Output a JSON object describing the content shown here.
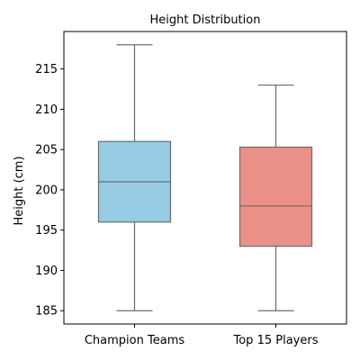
{
  "chart_data": {
    "type": "box",
    "title": "Height Distribution",
    "xlabel": "",
    "ylabel": "Height (cm)",
    "ylim": [
      183.35,
      219.65
    ],
    "yticks": [
      185,
      190,
      195,
      200,
      205,
      210,
      215
    ],
    "grid": false,
    "categories": [
      "Champion Teams",
      "Top 15 Players"
    ],
    "boxes": [
      {
        "category": "Champion Teams",
        "min": 185,
        "q1": 196,
        "median": 201,
        "q3": 206,
        "max": 218,
        "color": "#95cce3"
      },
      {
        "category": "Top 15 Players",
        "min": 185,
        "q1": 193,
        "median": 198,
        "q3": 205.3,
        "max": 213,
        "color": "#eb9086"
      }
    ]
  }
}
